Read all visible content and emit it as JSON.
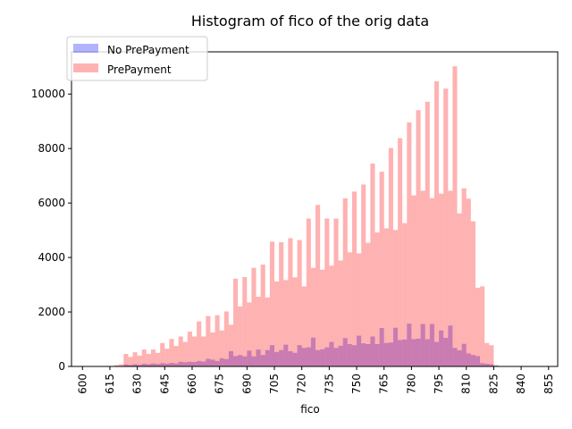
{
  "chart_data": {
    "type": "bar",
    "title": "Histogram of fico of the orig data",
    "xlabel": "fico",
    "ylabel": "",
    "xlim": [
      594,
      860
    ],
    "ylim": [
      0,
      11550
    ],
    "x_ticks": [
      "600",
      "615",
      "630",
      "645",
      "660",
      "675",
      "690",
      "705",
      "720",
      "735",
      "750",
      "765",
      "780",
      "795",
      "810",
      "825",
      "840",
      "855"
    ],
    "y_ticks": [
      "0",
      "2000",
      "4000",
      "6000",
      "8000",
      "10000"
    ],
    "bin_width": 2.5,
    "legend_position": "top-left",
    "series": [
      {
        "name": "No PrePayment",
        "color": "#0000ff",
        "opacity": 0.3,
        "bins": [
          [
            617.5,
            10
          ],
          [
            620,
            20
          ],
          [
            622.5,
            70
          ],
          [
            625,
            50
          ],
          [
            627.5,
            80
          ],
          [
            630,
            60
          ],
          [
            632.5,
            100
          ],
          [
            635,
            80
          ],
          [
            637.5,
            110
          ],
          [
            640,
            90
          ],
          [
            642.5,
            120
          ],
          [
            645,
            100
          ],
          [
            647.5,
            130
          ],
          [
            650,
            110
          ],
          [
            652.5,
            170
          ],
          [
            655,
            150
          ],
          [
            657.5,
            170
          ],
          [
            660,
            160
          ],
          [
            662.5,
            200
          ],
          [
            665,
            180
          ],
          [
            667.5,
            280
          ],
          [
            670,
            250
          ],
          [
            672.5,
            200
          ],
          [
            675,
            300
          ],
          [
            677.5,
            270
          ],
          [
            680,
            560
          ],
          [
            682.5,
            380
          ],
          [
            685,
            420
          ],
          [
            687.5,
            370
          ],
          [
            690,
            580
          ],
          [
            692.5,
            370
          ],
          [
            695,
            620
          ],
          [
            697.5,
            420
          ],
          [
            700,
            600
          ],
          [
            702.5,
            780
          ],
          [
            705,
            530
          ],
          [
            707.5,
            600
          ],
          [
            710,
            800
          ],
          [
            712.5,
            560
          ],
          [
            715,
            500
          ],
          [
            717.5,
            780
          ],
          [
            720,
            680
          ],
          [
            722.5,
            700
          ],
          [
            725,
            1060
          ],
          [
            727.5,
            600
          ],
          [
            730,
            630
          ],
          [
            732.5,
            700
          ],
          [
            735,
            900
          ],
          [
            737.5,
            680
          ],
          [
            740,
            760
          ],
          [
            742.5,
            1040
          ],
          [
            745,
            820
          ],
          [
            747.5,
            780
          ],
          [
            750,
            1130
          ],
          [
            752.5,
            850
          ],
          [
            755,
            820
          ],
          [
            757.5,
            1100
          ],
          [
            760,
            820
          ],
          [
            762.5,
            1410
          ],
          [
            765,
            860
          ],
          [
            767.5,
            880
          ],
          [
            770,
            1420
          ],
          [
            772.5,
            970
          ],
          [
            775,
            990
          ],
          [
            777.5,
            1570
          ],
          [
            780,
            1000
          ],
          [
            782.5,
            1020
          ],
          [
            785,
            1560
          ],
          [
            787.5,
            1000
          ],
          [
            790,
            1560
          ],
          [
            792.5,
            900
          ],
          [
            795,
            1320
          ],
          [
            797.5,
            1050
          ],
          [
            800,
            1500
          ],
          [
            802.5,
            680
          ],
          [
            805,
            590
          ],
          [
            807.5,
            830
          ],
          [
            810,
            480
          ],
          [
            812.5,
            420
          ],
          [
            815,
            380
          ],
          [
            817.5,
            120
          ],
          [
            820,
            100
          ],
          [
            822.5,
            80
          ],
          [
            825,
            20
          ]
        ]
      },
      {
        "name": "PrePayment",
        "color": "#ff0000",
        "opacity": 0.3,
        "bins": [
          [
            617.5,
            50
          ],
          [
            620,
            80
          ],
          [
            622.5,
            460
          ],
          [
            625,
            350
          ],
          [
            627.5,
            520
          ],
          [
            630,
            400
          ],
          [
            632.5,
            620
          ],
          [
            635,
            460
          ],
          [
            637.5,
            620
          ],
          [
            640,
            500
          ],
          [
            642.5,
            860
          ],
          [
            645,
            650
          ],
          [
            647.5,
            1010
          ],
          [
            650,
            750
          ],
          [
            652.5,
            1100
          ],
          [
            655,
            900
          ],
          [
            657.5,
            1280
          ],
          [
            660,
            1100
          ],
          [
            662.5,
            1650
          ],
          [
            665,
            1100
          ],
          [
            667.5,
            1850
          ],
          [
            670,
            1250
          ],
          [
            672.5,
            1880
          ],
          [
            675,
            1320
          ],
          [
            677.5,
            2020
          ],
          [
            680,
            1530
          ],
          [
            682.5,
            3220
          ],
          [
            685,
            2200
          ],
          [
            687.5,
            3280
          ],
          [
            690,
            2350
          ],
          [
            692.5,
            3620
          ],
          [
            695,
            2560
          ],
          [
            697.5,
            3740
          ],
          [
            700,
            2530
          ],
          [
            702.5,
            4580
          ],
          [
            705,
            3120
          ],
          [
            707.5,
            4560
          ],
          [
            710,
            3170
          ],
          [
            712.5,
            4710
          ],
          [
            715,
            3270
          ],
          [
            717.5,
            4640
          ],
          [
            720,
            2940
          ],
          [
            722.5,
            5430
          ],
          [
            725,
            3620
          ],
          [
            727.5,
            5930
          ],
          [
            730,
            3550
          ],
          [
            732.5,
            5430
          ],
          [
            735,
            3700
          ],
          [
            737.5,
            5430
          ],
          [
            740,
            3890
          ],
          [
            742.5,
            6170
          ],
          [
            745,
            4190
          ],
          [
            747.5,
            6420
          ],
          [
            750,
            4150
          ],
          [
            752.5,
            6680
          ],
          [
            755,
            4540
          ],
          [
            757.5,
            7450
          ],
          [
            760,
            4920
          ],
          [
            762.5,
            7150
          ],
          [
            765,
            5070
          ],
          [
            767.5,
            8020
          ],
          [
            770,
            5010
          ],
          [
            772.5,
            8380
          ],
          [
            775,
            5260
          ],
          [
            777.5,
            8960
          ],
          [
            780,
            6280
          ],
          [
            782.5,
            9410
          ],
          [
            785,
            6450
          ],
          [
            787.5,
            9720
          ],
          [
            790,
            6180
          ],
          [
            792.5,
            10470
          ],
          [
            795,
            6340
          ],
          [
            797.5,
            10200
          ],
          [
            800,
            6450
          ],
          [
            802.5,
            11020
          ],
          [
            805,
            5620
          ],
          [
            807.5,
            6540
          ],
          [
            810,
            6160
          ],
          [
            812.5,
            5330
          ],
          [
            815,
            2890
          ],
          [
            817.5,
            2940
          ],
          [
            820,
            860
          ],
          [
            822.5,
            780
          ],
          [
            825,
            50
          ]
        ]
      }
    ]
  }
}
